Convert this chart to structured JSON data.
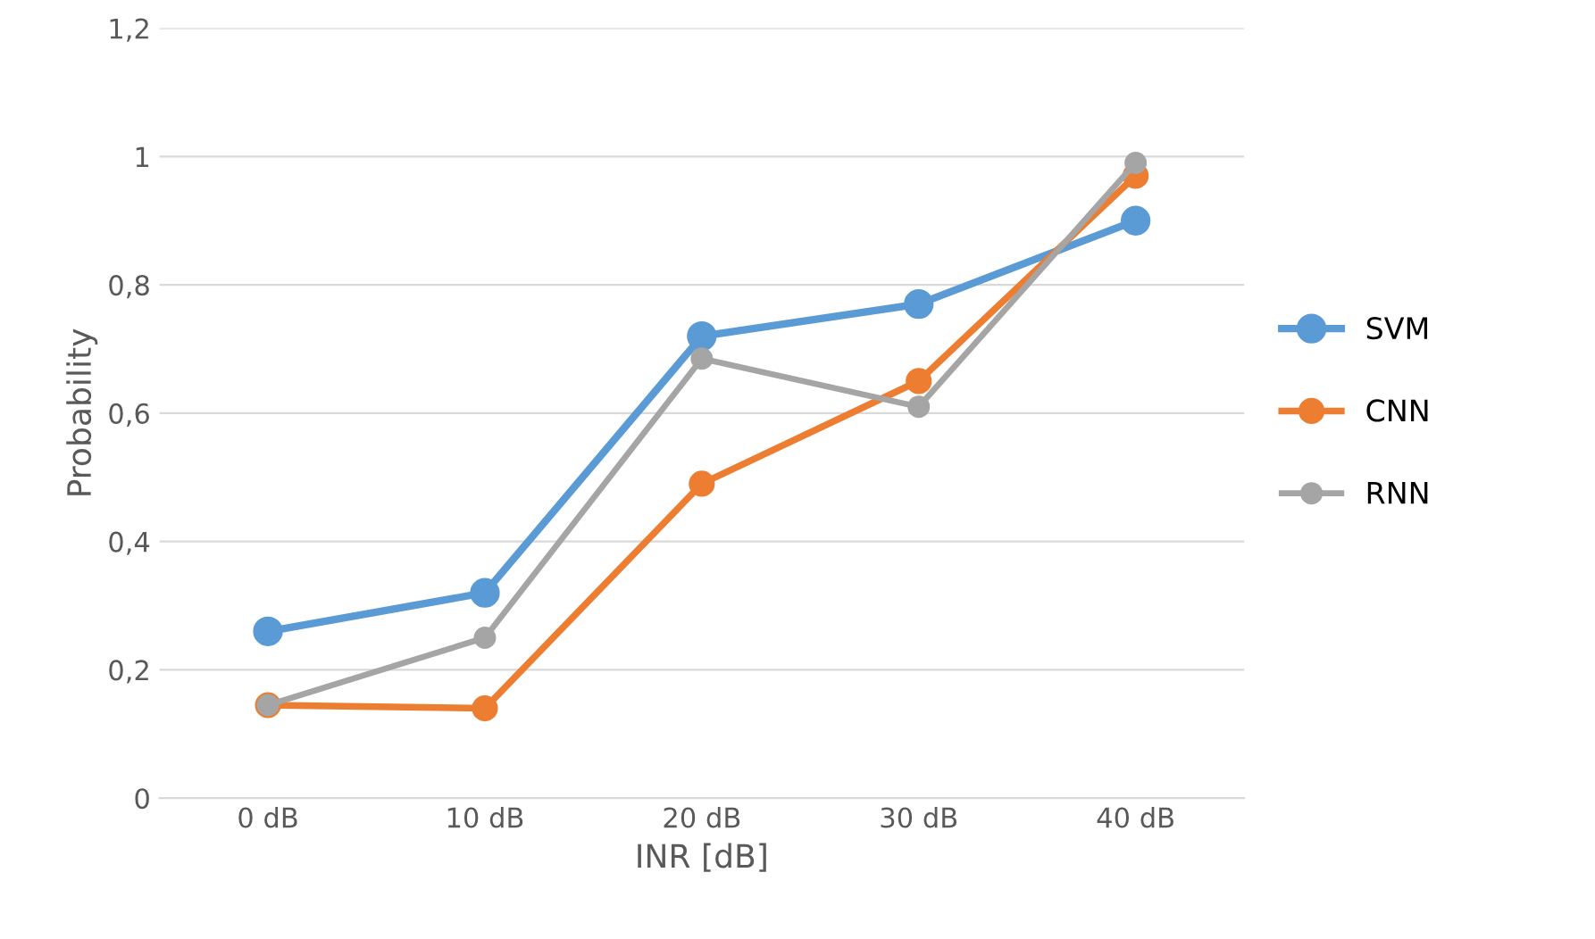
{
  "chart_data": {
    "type": "line",
    "xlabel": "INR [dB]",
    "ylabel": "Probability",
    "categories": [
      "0 dB",
      "10 dB",
      "20 dB",
      "30 dB",
      "40 dB"
    ],
    "series": [
      {
        "name": "SVM",
        "color": "#5b9bd5",
        "values": [
          0.26,
          0.32,
          0.72,
          0.77,
          0.9
        ]
      },
      {
        "name": "CNN",
        "color": "#ed7d31",
        "values": [
          0.145,
          0.14,
          0.49,
          0.65,
          0.97
        ]
      },
      {
        "name": "RNN",
        "color": "#a5a5a5",
        "values": [
          0.145,
          0.25,
          0.685,
          0.61,
          0.99
        ]
      }
    ],
    "ylim": [
      0,
      1.2
    ],
    "yticks": [
      {
        "value": 0,
        "label": "0"
      },
      {
        "value": 0.2,
        "label": "0,2"
      },
      {
        "value": 0.4,
        "label": "0,4"
      },
      {
        "value": 0.6,
        "label": "0,6"
      },
      {
        "value": 0.8,
        "label": "0,8"
      },
      {
        "value": 1,
        "label": "1"
      },
      {
        "value": 1.2,
        "label": "1,2"
      }
    ],
    "grid": "y",
    "legend": "right",
    "marker": "circle",
    "line_style": "solid"
  }
}
